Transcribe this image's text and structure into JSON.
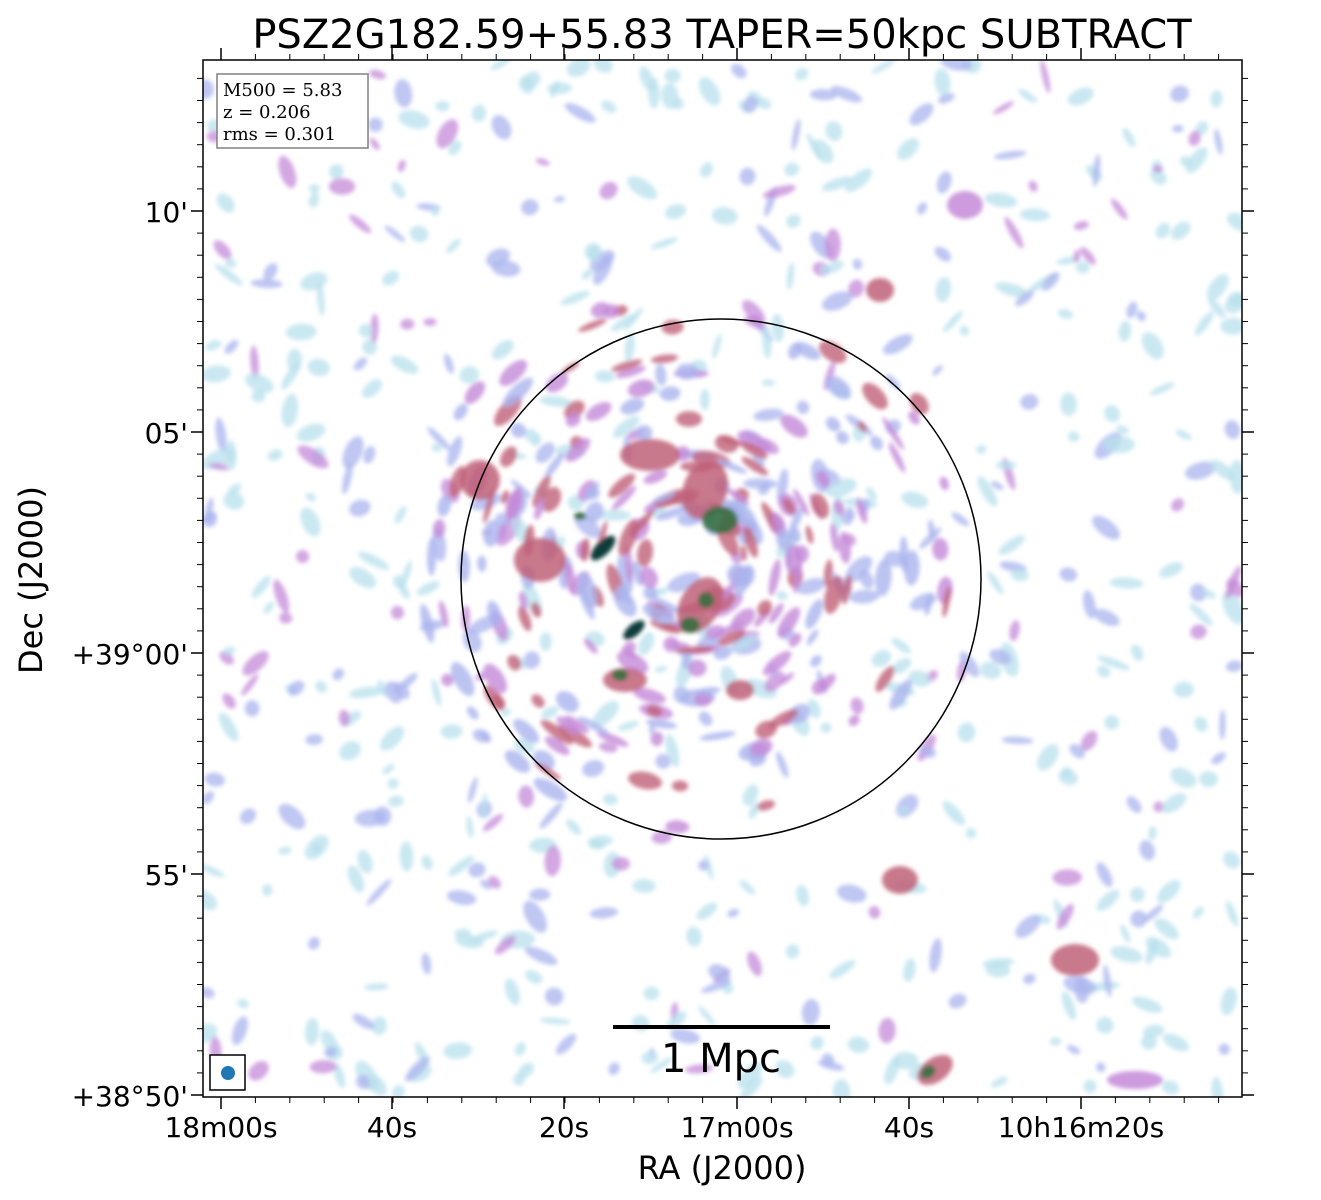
{
  "title": "PSZ2G182.59+55.83 TAPER=50kpc SUBTRACT",
  "info_box": {
    "m500": "M500 = 5.83",
    "z": "z = 0.206",
    "rms": "rms = 0.301"
  },
  "x_axis": {
    "label": "RA (J2000)",
    "ticks": [
      "18m00s",
      "40s",
      "20s",
      "17m00s",
      "40s",
      "10h16m20s"
    ]
  },
  "y_axis": {
    "label": "Dec (J2000)",
    "ticks": [
      "10'",
      "05'",
      "+39°00'",
      "55'",
      "+38°50'"
    ]
  },
  "scale_bar": {
    "label": "1 Mpc"
  },
  "colors": {
    "faint": "#b8e0ec",
    "low": "#aab4ee",
    "mid": "#c48ad8",
    "high": "#c06078",
    "peak": "#2f6e3c",
    "core": "#0f3d3a",
    "beam": "#1f77b4"
  }
}
